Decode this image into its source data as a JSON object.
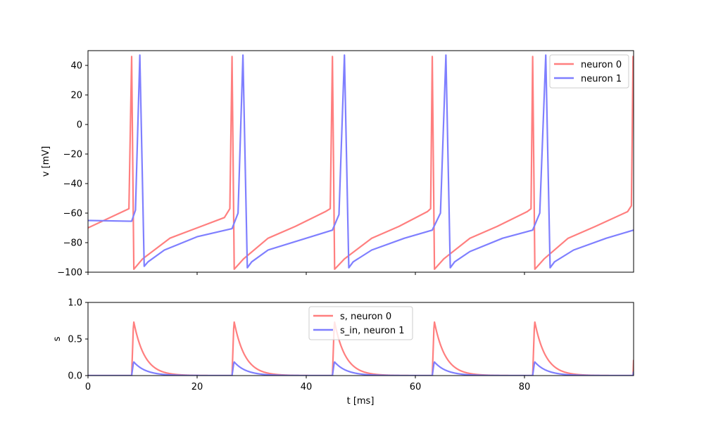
{
  "chart_data": [
    {
      "type": "line",
      "title": "",
      "xlabel": "",
      "ylabel": "v [mV]",
      "xlim": [
        0,
        100
      ],
      "ylim": [
        -100,
        50
      ],
      "x_ticks": [
        0,
        20,
        40,
        60,
        80
      ],
      "x_tick_labels_visible": false,
      "y_ticks": [
        40,
        20,
        0,
        -20,
        -40,
        -60,
        -80,
        -100
      ],
      "y_tick_labels": [
        "40",
        "20",
        "0",
        "−20",
        "−40",
        "−60",
        "−80",
        "−100"
      ],
      "legend_placement": "top-right",
      "grid": false,
      "series": [
        {
          "name": "neuron 0",
          "color": "#ff7f7f",
          "spike_times": [
            8.0,
            26.4,
            44.8,
            63.1,
            81.5,
            99.9
          ],
          "x": [
            0,
            7.5,
            8.0,
            8.4,
            10,
            15,
            20,
            25,
            26.0,
            26.4,
            26.8,
            28.5,
            33,
            38,
            43.5,
            44.4,
            44.8,
            45.2,
            47,
            52,
            57,
            62.2,
            62.8,
            63.1,
            63.5,
            65.2,
            70,
            75,
            80.5,
            81.2,
            81.5,
            81.9,
            83.6,
            88,
            93,
            98.9,
            99.6,
            99.9
          ],
          "values": [
            -70,
            -57,
            46,
            -98,
            -91,
            -77,
            -70,
            -63,
            -57,
            46,
            -98,
            -91,
            -77,
            -69,
            -59,
            -57,
            46,
            -98,
            -91,
            -77,
            -69,
            -59,
            -57,
            46,
            -98,
            -91,
            -77,
            -69,
            -59,
            -57,
            46,
            -98,
            -91,
            -77,
            -69,
            -59,
            -55,
            46
          ]
        },
        {
          "name": "neuron 1",
          "color": "#7f7fff",
          "spike_times": [
            9.5,
            28.4,
            47.0,
            65.6,
            83.9
          ],
          "x": [
            0,
            8.0,
            8.7,
            9.5,
            10.3,
            11,
            14,
            20,
            26.4,
            27.5,
            28.4,
            29.2,
            30,
            33,
            40,
            44.8,
            46.0,
            47.0,
            47.8,
            48.6,
            52,
            58,
            63.1,
            64.6,
            65.6,
            66.4,
            67.2,
            70,
            76,
            81.5,
            82.8,
            83.9,
            84.7,
            85.5,
            89,
            95,
            100
          ],
          "values": [
            -65,
            -65.5,
            -58,
            47,
            -96,
            -93,
            -85,
            -76,
            -70.5,
            -60,
            47,
            -97,
            -93,
            -85,
            -77,
            -71.5,
            -61,
            47,
            -97,
            -93,
            -85,
            -77,
            -71.5,
            -60,
            47,
            -97,
            -93,
            -86,
            -77,
            -71.5,
            -60,
            47,
            -97,
            -93,
            -85,
            -77,
            -71.5
          ]
        }
      ]
    },
    {
      "type": "line",
      "title": "",
      "xlabel": "t [ms]",
      "ylabel": "s",
      "xlim": [
        0,
        100
      ],
      "ylim": [
        0,
        1
      ],
      "x_ticks": [
        0,
        20,
        40,
        60,
        80
      ],
      "x_tick_labels": [
        "0",
        "20",
        "40",
        "60",
        "80"
      ],
      "y_ticks": [
        1.0,
        0.5,
        0.0
      ],
      "y_tick_labels": [
        "1.0",
        "0.5",
        "0.0"
      ],
      "legend_placement": "upper-center",
      "grid": false,
      "series": [
        {
          "name": "s, neuron 0",
          "color": "#ff7f7f",
          "spike_times": [
            8.0,
            26.4,
            44.8,
            63.1,
            81.5,
            99.9
          ],
          "peak": 0.75,
          "decay_ms": 2.0
        },
        {
          "name": "s_in, neuron 1",
          "color": "#7f7fff",
          "spike_times": [
            8.0,
            26.4,
            44.8,
            63.1,
            81.5,
            99.9
          ],
          "peak": 0.19,
          "decay_ms": 2.2
        }
      ]
    }
  ]
}
